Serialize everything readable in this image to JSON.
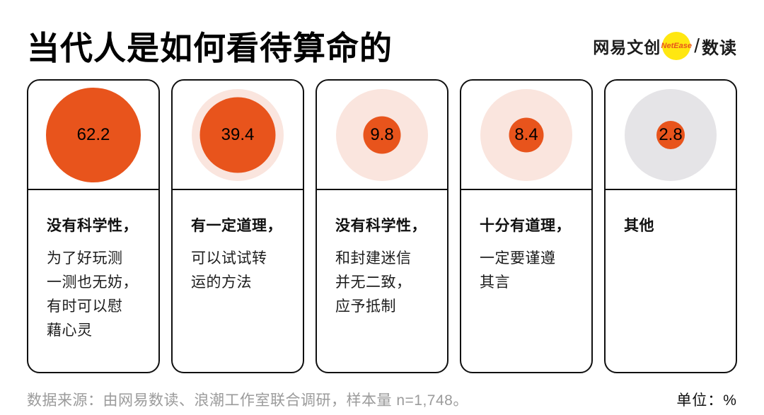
{
  "header": {
    "title": "当代人是如何看待算命的",
    "logo": {
      "brand": "网易文创",
      "badge": "NetEase",
      "separator": "/",
      "sub_brand": "数读"
    }
  },
  "footer": {
    "source": "数据来源：由网易数读、浪潮工作室联合调研，样本量 n=1,748。",
    "unit": "单位：%"
  },
  "colors": {
    "orange": "#E8541C",
    "halo_pink": "#FAE5DE",
    "halo_gray": "#E5E4E7",
    "brand_yellow": "#FFE711",
    "badge_text": "#E8541C",
    "source_gray": "#9B9B9B"
  },
  "chart_data": {
    "type": "bubble",
    "title": "当代人是如何看待算命的",
    "unit": "%",
    "legend_position": "none",
    "sample_note": "n=1,748",
    "items": [
      {
        "value": 62.2,
        "label": "没有科学性，",
        "description": "为了好玩测\n一测也无妨，\n有时可以慰\n藉心灵",
        "halo": "pink"
      },
      {
        "value": 39.4,
        "label": "有一定道理，",
        "description": "可以试试转\n运的方法",
        "halo": "pink"
      },
      {
        "value": 9.8,
        "label": "没有科学性，",
        "description": "和封建迷信\n并无二致，\n应予抵制",
        "halo": "pink"
      },
      {
        "value": 8.4,
        "label": "十分有道理，",
        "description": "一定要谨遵\n其言",
        "halo": "pink"
      },
      {
        "value": 2.8,
        "label": "其他",
        "description": "",
        "halo": "gray"
      }
    ]
  }
}
